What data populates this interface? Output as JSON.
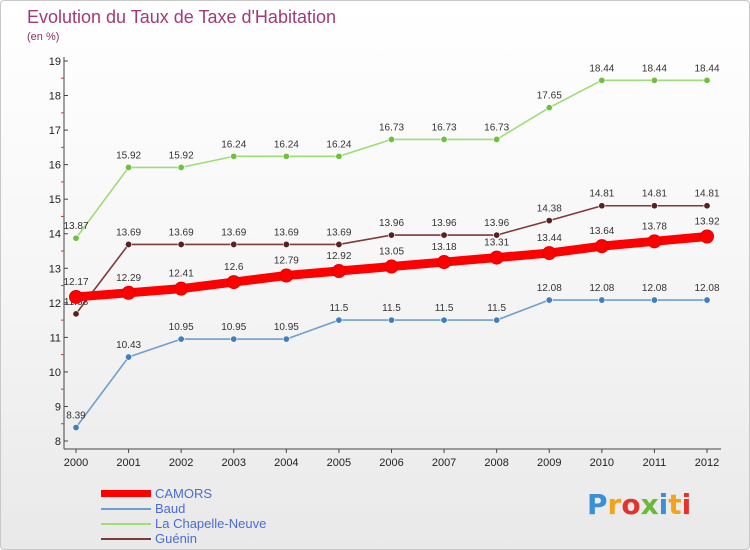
{
  "chart_data": {
    "type": "line",
    "title": "Evolution du Taux de Taxe d'Habitation",
    "unit_label": "(en %)",
    "x": [
      "2000",
      "2001",
      "2002",
      "2003",
      "2004",
      "2005",
      "2006",
      "2007",
      "2008",
      "2009",
      "2010",
      "2011",
      "2012"
    ],
    "y_ticks": [
      8,
      9,
      10,
      11,
      12,
      13,
      14,
      15,
      16,
      17,
      18,
      19
    ],
    "ylim": [
      8,
      19
    ],
    "grid": false,
    "legend_position": "bottom-left",
    "series": [
      {
        "name": "La Chapelle-Neuve",
        "color": "#9fdc7a",
        "point_color": "#6cc23f",
        "values": [
          13.87,
          15.92,
          15.92,
          16.24,
          16.24,
          16.24,
          16.73,
          16.73,
          16.73,
          17.65,
          18.44,
          18.44,
          18.44
        ],
        "labels": [
          "13.87",
          "15.92",
          "15.92",
          "16.24",
          "16.24",
          "16.24",
          "16.73",
          "16.73",
          "16.73",
          "17.65",
          "18.44",
          "18.44",
          "18.44"
        ]
      },
      {
        "name": "Guénin",
        "color": "#7d3a3a",
        "point_color": "#5a1f1f",
        "values": [
          11.68,
          13.69,
          13.69,
          13.69,
          13.69,
          13.69,
          13.96,
          13.96,
          13.96,
          14.38,
          14.81,
          14.81,
          14.81
        ],
        "labels": [
          "11.68",
          "13.69",
          "13.69",
          "13.69",
          "13.69",
          "13.69",
          "13.96",
          "13.96",
          "13.96",
          "14.38",
          "14.81",
          "14.81",
          "14.81"
        ]
      },
      {
        "name": "Baud",
        "color": "#6f9fcc",
        "point_color": "#3f7fbf",
        "values": [
          8.39,
          10.43,
          10.95,
          10.95,
          10.95,
          11.5,
          11.5,
          11.5,
          11.5,
          12.08,
          12.08,
          12.08,
          12.08
        ],
        "labels": [
          "8.39",
          "10.43",
          "10.95",
          "10.95",
          "10.95",
          "11.5",
          "11.5",
          "11.5",
          "11.5",
          "12.08",
          "12.08",
          "12.08",
          "12.08"
        ]
      },
      {
        "name": "CAMORS",
        "color": "#ff0000",
        "point_color": "#ff0000",
        "values": [
          12.17,
          12.29,
          12.41,
          12.6,
          12.79,
          12.92,
          13.05,
          13.18,
          13.31,
          13.44,
          13.64,
          13.78,
          13.92
        ],
        "labels": [
          "12.17",
          "12.29",
          "12.41",
          "12.6",
          "12.79",
          "12.92",
          "13.05",
          "13.18",
          "13.31",
          "13.44",
          "13.64",
          "13.78",
          "13.92"
        ]
      }
    ]
  },
  "legend": {
    "items": [
      {
        "name": "CAMORS",
        "color": "#ff0000",
        "thickness": 7
      },
      {
        "name": "Baud",
        "color": "#6f9fcc",
        "thickness": 2
      },
      {
        "name": "La Chapelle-Neuve",
        "color": "#9fdc7a",
        "thickness": 2
      },
      {
        "name": "Guénin",
        "color": "#7d3a3a",
        "thickness": 2
      }
    ]
  },
  "logo": {
    "letters": [
      {
        "ch": "P",
        "color": "#3a8fd6"
      },
      {
        "ch": "r",
        "color": "#f2a31b"
      },
      {
        "ch": "o",
        "color": "#e2342b"
      },
      {
        "ch": "x",
        "color": "#6bb83a"
      },
      {
        "ch": "i",
        "color": "#3a8fd6"
      },
      {
        "ch": "t",
        "color": "#f2a31b"
      },
      {
        "ch": "i",
        "color": "#e2342b"
      }
    ]
  }
}
